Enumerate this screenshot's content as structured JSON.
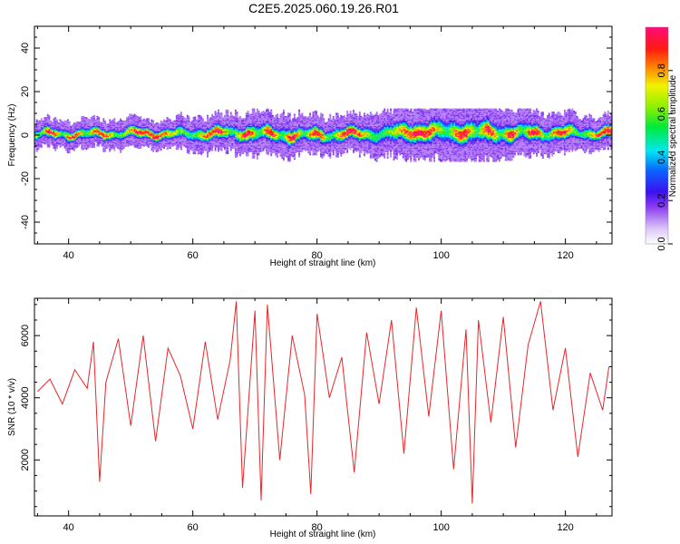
{
  "figure": {
    "title": "C2E5.2025.060.19.26.R01"
  },
  "chart_data": [
    {
      "type": "heatmap",
      "xlabel": "Height of straight line (km)",
      "ylabel": "Frequency (Hz)",
      "xlim": [
        34.5,
        127.5
      ],
      "ylim": [
        -50,
        50
      ],
      "x_ticks": [
        40,
        60,
        80,
        100,
        120
      ],
      "y_ticks": [
        -40,
        -20,
        0,
        20,
        40
      ],
      "colorbar": {
        "label": "Normalized spectral amplitude",
        "range": [
          0,
          1
        ],
        "ticks": [
          "0.0",
          "0.2",
          "0.4",
          "0.6",
          "0.8"
        ],
        "colormap": "rainbow (white, violet, blue, cyan, green, yellow, red, magenta)"
      },
      "description": "Narrow energy band centered near 0 Hz, approx -5 to +5 Hz wide, spanning the full height range; broader spread (approx -8 to +10 Hz) between 90 and 115 km",
      "band": {
        "x": [
          35,
          40,
          45,
          50,
          55,
          60,
          65,
          70,
          75,
          80,
          85,
          90,
          95,
          100,
          105,
          110,
          115,
          120,
          125,
          127
        ],
        "center_hz": [
          0.5,
          0.5,
          0.5,
          1,
          0.5,
          0.5,
          1,
          1,
          0,
          0,
          0.5,
          0.5,
          1.5,
          1.5,
          1.5,
          1,
          1,
          1,
          1,
          1
        ],
        "half_width_hz": [
          3,
          3,
          3,
          3,
          3,
          3.5,
          4,
          4.5,
          4.5,
          4,
          4,
          4.5,
          5.5,
          6.5,
          6.5,
          5.5,
          4.5,
          4,
          3.5,
          3.5
        ]
      }
    },
    {
      "type": "line",
      "xlabel": "Height of straight line (km)",
      "ylabel": "SNR (10 * v/v)",
      "xlim": [
        34.5,
        127.5
      ],
      "ylim": [
        200,
        7200
      ],
      "x_ticks": [
        40,
        60,
        80,
        100,
        120
      ],
      "y_ticks": [
        2000,
        4000,
        6000
      ],
      "line_color": "#e8262a",
      "series": [
        {
          "x": [
            35,
            37,
            39,
            41,
            43,
            44,
            45,
            46,
            48,
            50,
            52,
            54,
            56,
            58,
            60,
            62,
            64,
            66,
            67,
            68,
            70,
            71,
            72,
            74,
            76,
            78,
            79,
            80,
            82,
            84,
            86,
            88,
            90,
            92,
            94,
            96,
            98,
            100,
            102,
            104,
            105,
            106,
            108,
            110,
            112,
            114,
            116,
            118,
            120,
            122,
            124,
            126,
            127
          ],
          "y": [
            4200,
            4600,
            3800,
            4900,
            4300,
            5800,
            1300,
            4500,
            5900,
            3100,
            6000,
            2600,
            5600,
            4700,
            3000,
            5800,
            3300,
            5200,
            7100,
            1100,
            6800,
            700,
            7000,
            2000,
            6000,
            4100,
            900,
            6700,
            4000,
            5300,
            1600,
            6100,
            3800,
            6500,
            2200,
            6900,
            3400,
            6800,
            1700,
            6200,
            600,
            6500,
            3200,
            6600,
            2400,
            5700,
            7100,
            3600,
            5600,
            2100,
            4800,
            3600,
            5000
          ]
        }
      ]
    }
  ]
}
